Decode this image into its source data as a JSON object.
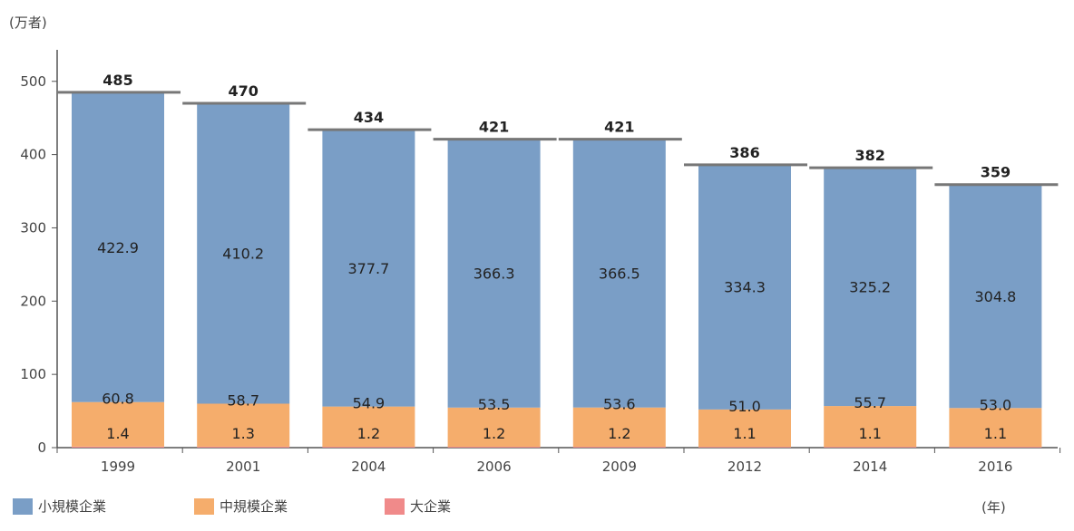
{
  "chart_data": {
    "type": "bar",
    "stacked": true,
    "y_unit_label": "(万者)",
    "x_unit_label": "(年)",
    "categories": [
      "1999",
      "2001",
      "2004",
      "2006",
      "2009",
      "2012",
      "2014",
      "2016"
    ],
    "series": [
      {
        "name": "小規模企業",
        "color": "#7a9ec6",
        "values": [
          422.9,
          410.2,
          377.7,
          366.3,
          366.5,
          334.3,
          325.2,
          304.8
        ]
      },
      {
        "name": "中規模企業",
        "color": "#f5ad6c",
        "values": [
          60.8,
          58.7,
          54.9,
          53.5,
          53.6,
          51.0,
          55.7,
          53.0
        ]
      },
      {
        "name": "大企業",
        "color": "#f08a8a",
        "values": [
          1.4,
          1.3,
          1.2,
          1.2,
          1.2,
          1.1,
          1.1,
          1.1
        ]
      }
    ],
    "totals": [
      485,
      470,
      434,
      421,
      421,
      386,
      382,
      359
    ],
    "yticks": [
      0,
      100,
      200,
      300,
      400,
      500
    ],
    "ylim": [
      0,
      550
    ],
    "grid": false,
    "legend_position": "bottom-left"
  }
}
